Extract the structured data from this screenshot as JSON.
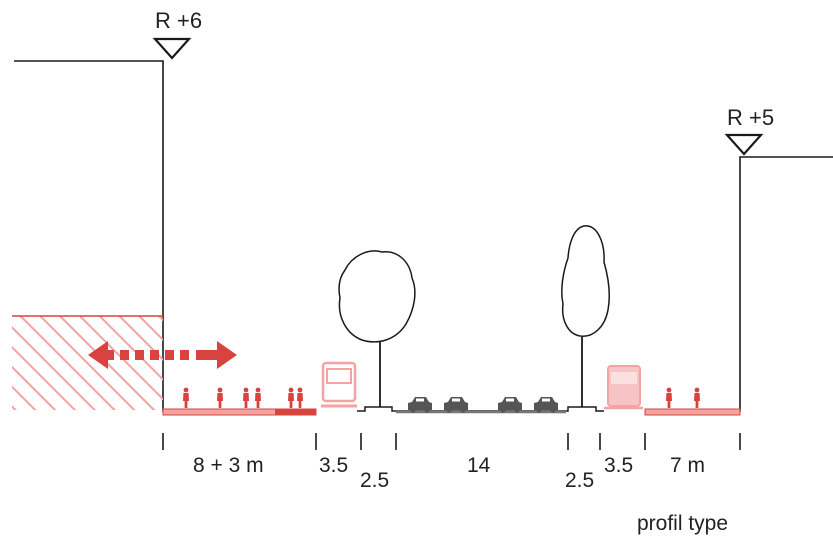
{
  "colors": {
    "line": "#1a1a1a",
    "accent": "#d8433f",
    "accent_light": "#f4a3a3",
    "hatch": "#f3a3a3",
    "car": "#555555"
  },
  "levels": {
    "left": "R +6",
    "right": "R +5"
  },
  "dimensions": {
    "d1": "8 + 3 m",
    "d2": "3.5",
    "d3": "2.5",
    "d4": "14",
    "d5": "2.5",
    "d6": "3.5",
    "d7": "7 m"
  },
  "caption": "profil type",
  "icons": {
    "arrow": "double-arrow-icon",
    "pedestrian": "pedestrian-icon",
    "bus": "bus-icon",
    "car": "car-icon",
    "tree": "tree-icon",
    "level_marker": "level-marker-icon"
  }
}
